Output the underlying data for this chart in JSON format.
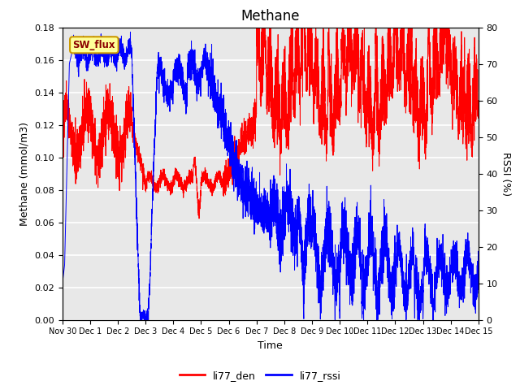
{
  "title": "Methane",
  "xlabel": "Time",
  "ylabel_left": "Methane (mmol/m3)",
  "ylabel_right": "RSSI (%)",
  "ylim_left": [
    0.0,
    0.18
  ],
  "ylim_right": [
    0,
    80
  ],
  "yticks_left": [
    0.0,
    0.02,
    0.04,
    0.06,
    0.08,
    0.1,
    0.12,
    0.14,
    0.16,
    0.18
  ],
  "yticks_right": [
    0,
    10,
    20,
    30,
    40,
    50,
    60,
    70,
    80
  ],
  "xtick_labels": [
    "Nov 30",
    "Dec 1",
    "Dec 2",
    "Dec 3",
    "Dec 4",
    "Dec 5",
    "Dec 6",
    "Dec 7",
    "Dec 8",
    "Dec 9",
    "Dec 10",
    "Dec 11",
    "Dec 12",
    "Dec 13",
    "Dec 14",
    "Dec 15"
  ],
  "color_den": "#ff0000",
  "color_rssi": "#0000ff",
  "legend_labels": [
    "li77_den",
    "li77_rssi"
  ],
  "sw_flux_label": "SW_flux",
  "sw_flux_bg": "#ffff99",
  "sw_flux_border": "#cc9900",
  "background_color": "#e8e8e8",
  "grid_color": "#ffffff",
  "title_fontsize": 12,
  "axis_fontsize": 9,
  "tick_fontsize": 8
}
